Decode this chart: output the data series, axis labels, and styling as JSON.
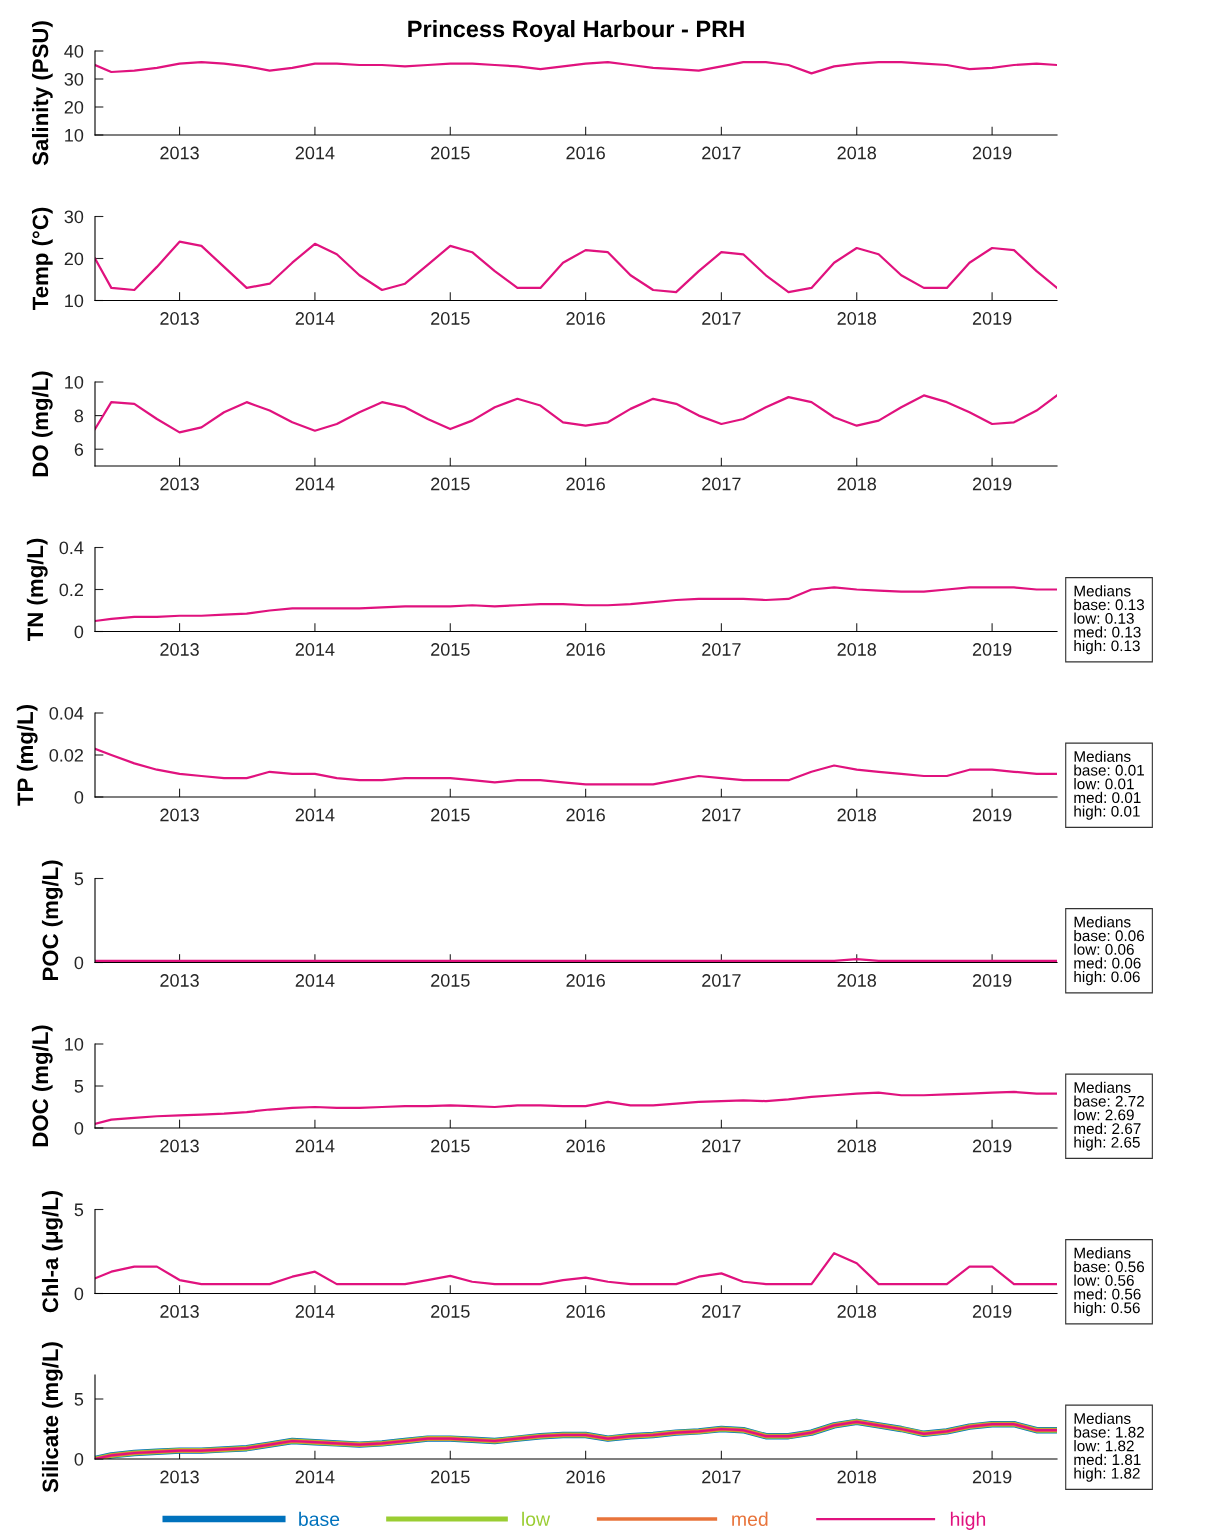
{
  "chart_data": [
    {
      "type": "line",
      "title": "Princess Royal Harbour - PRH",
      "ylabel": "Salinity (PSU)",
      "xlim": [
        "2012-05-18",
        "2019-06-25"
      ],
      "xticks": [
        "2013",
        "2014",
        "2015",
        "2016",
        "2017",
        "2018",
        "2019"
      ],
      "ylim": [
        10,
        40
      ],
      "yticks": [
        10,
        20,
        30,
        40
      ],
      "grid": false,
      "x": [
        "2012-05-18",
        "2012-07",
        "2012-09",
        "2012-11",
        "2013-01",
        "2013-03",
        "2013-05",
        "2013-07",
        "2013-09",
        "2013-11",
        "2014-01",
        "2014-03",
        "2014-05",
        "2014-07",
        "2014-09",
        "2014-11",
        "2015-01",
        "2015-03",
        "2015-05",
        "2015-07",
        "2015-09",
        "2015-11",
        "2016-01",
        "2016-03",
        "2016-05",
        "2016-07",
        "2016-09",
        "2016-11",
        "2017-01",
        "2017-03",
        "2017-05",
        "2017-07",
        "2017-09",
        "2017-11",
        "2018-01",
        "2018-03",
        "2018-05",
        "2018-07",
        "2018-09",
        "2018-11",
        "2019-01",
        "2019-03",
        "2019-05",
        "2019-06-25"
      ],
      "series": [
        {
          "color": "#e0127e",
          "values": [
            35,
            32.5,
            33,
            34,
            35.5,
            36,
            35.5,
            34.5,
            33,
            34,
            35.5,
            35.5,
            35,
            35,
            34.5,
            35,
            35.5,
            35.5,
            35,
            34.5,
            33.5,
            34.5,
            35.5,
            36,
            35,
            34,
            33.5,
            33,
            34.5,
            36,
            36,
            35,
            32,
            34.5,
            35.5,
            36,
            36,
            35.5,
            35,
            33.5,
            34,
            35,
            35.5,
            35
          ]
        }
      ]
    },
    {
      "type": "line",
      "ylabel": "Temp (°C)",
      "xlim": [
        "2012-05-18",
        "2019-06-25"
      ],
      "xticks": [
        "2013",
        "2014",
        "2015",
        "2016",
        "2017",
        "2018",
        "2019"
      ],
      "ylim": [
        10,
        30
      ],
      "yticks": [
        10,
        20,
        30
      ],
      "grid": false,
      "x": [
        "2012-05-18",
        "2012-07",
        "2012-09",
        "2012-11",
        "2013-01",
        "2013-03",
        "2013-05",
        "2013-07",
        "2013-09",
        "2013-11",
        "2014-01",
        "2014-03",
        "2014-05",
        "2014-07",
        "2014-09",
        "2014-11",
        "2015-01",
        "2015-03",
        "2015-05",
        "2015-07",
        "2015-09",
        "2015-11",
        "2016-01",
        "2016-03",
        "2016-05",
        "2016-07",
        "2016-09",
        "2016-11",
        "2017-01",
        "2017-03",
        "2017-05",
        "2017-07",
        "2017-09",
        "2017-11",
        "2018-01",
        "2018-03",
        "2018-05",
        "2018-07",
        "2018-09",
        "2018-11",
        "2019-01",
        "2019-03",
        "2019-05",
        "2019-06-25"
      ],
      "series": [
        {
          "color": "#e0127e",
          "values": [
            20,
            13,
            12.5,
            18,
            24,
            23,
            18,
            13,
            14,
            19,
            23.5,
            21,
            16,
            12.5,
            14,
            18.5,
            23,
            21.5,
            17,
            13,
            13,
            19,
            22,
            21.5,
            16,
            12.5,
            12,
            17,
            21.5,
            21,
            16,
            12,
            13,
            19,
            22.5,
            21,
            16,
            13,
            13,
            19,
            22.5,
            22,
            17,
            13
          ]
        }
      ]
    },
    {
      "type": "line",
      "ylabel": "DO (mg/L)",
      "xlim": [
        "2012-05-18",
        "2019-06-25"
      ],
      "xticks": [
        "2013",
        "2014",
        "2015",
        "2016",
        "2017",
        "2018",
        "2019"
      ],
      "ylim": [
        5,
        10
      ],
      "yticks": [
        6,
        8,
        10
      ],
      "grid": false,
      "x": [
        "2012-05-18",
        "2012-07",
        "2012-09",
        "2012-11",
        "2013-01",
        "2013-03",
        "2013-05",
        "2013-07",
        "2013-09",
        "2013-11",
        "2014-01",
        "2014-03",
        "2014-05",
        "2014-07",
        "2014-09",
        "2014-11",
        "2015-01",
        "2015-03",
        "2015-05",
        "2015-07",
        "2015-09",
        "2015-11",
        "2016-01",
        "2016-03",
        "2016-05",
        "2016-07",
        "2016-09",
        "2016-11",
        "2017-01",
        "2017-03",
        "2017-05",
        "2017-07",
        "2017-09",
        "2017-11",
        "2018-01",
        "2018-03",
        "2018-05",
        "2018-07",
        "2018-09",
        "2018-11",
        "2019-01",
        "2019-03",
        "2019-05",
        "2019-06-25"
      ],
      "series": [
        {
          "color": "#e0127e",
          "values": [
            7.2,
            8.8,
            8.7,
            7.8,
            7,
            7.3,
            8.2,
            8.8,
            8.3,
            7.6,
            7.1,
            7.5,
            8.2,
            8.8,
            8.5,
            7.8,
            7.2,
            7.7,
            8.5,
            9,
            8.6,
            7.6,
            7.4,
            7.6,
            8.4,
            9,
            8.7,
            8,
            7.5,
            7.8,
            8.5,
            9.1,
            8.8,
            7.9,
            7.4,
            7.7,
            8.5,
            9.2,
            8.8,
            8.2,
            7.5,
            7.6,
            8.3,
            9.2
          ]
        }
      ]
    },
    {
      "type": "line",
      "ylabel": "TN (mg/L)",
      "xlim": [
        "2012-05-18",
        "2019-06-25"
      ],
      "xticks": [
        "2013",
        "2014",
        "2015",
        "2016",
        "2017",
        "2018",
        "2019"
      ],
      "ylim": [
        0,
        0.4
      ],
      "yticks": [
        0,
        0.2,
        0.4
      ],
      "grid": false,
      "annotations": [
        "Medians\nbase: 0.13\nlow: 0.13\nmed: 0.13\nhigh: 0.13"
      ],
      "x": [
        "2012-05-18",
        "2012-07",
        "2012-09",
        "2012-11",
        "2013-01",
        "2013-03",
        "2013-05",
        "2013-07",
        "2013-09",
        "2013-11",
        "2014-01",
        "2014-03",
        "2014-05",
        "2014-07",
        "2014-09",
        "2014-11",
        "2015-01",
        "2015-03",
        "2015-05",
        "2015-07",
        "2015-09",
        "2015-11",
        "2016-01",
        "2016-03",
        "2016-05",
        "2016-07",
        "2016-09",
        "2016-11",
        "2017-01",
        "2017-03",
        "2017-05",
        "2017-07",
        "2017-09",
        "2017-11",
        "2018-01",
        "2018-03",
        "2018-05",
        "2018-07",
        "2018-09",
        "2018-11",
        "2019-01",
        "2019-03",
        "2019-05",
        "2019-06-25"
      ],
      "series": [
        {
          "color": "#e0127e",
          "values": [
            0.05,
            0.06,
            0.07,
            0.07,
            0.075,
            0.075,
            0.08,
            0.085,
            0.1,
            0.11,
            0.11,
            0.11,
            0.11,
            0.115,
            0.12,
            0.12,
            0.12,
            0.125,
            0.12,
            0.125,
            0.13,
            0.13,
            0.125,
            0.125,
            0.13,
            0.14,
            0.15,
            0.155,
            0.155,
            0.155,
            0.15,
            0.155,
            0.2,
            0.21,
            0.2,
            0.195,
            0.19,
            0.19,
            0.2,
            0.21,
            0.21,
            0.21,
            0.2,
            0.2
          ]
        }
      ]
    },
    {
      "type": "line",
      "ylabel": "TP (mg/L)",
      "xlim": [
        "2012-05-18",
        "2019-06-25"
      ],
      "xticks": [
        "2013",
        "2014",
        "2015",
        "2016",
        "2017",
        "2018",
        "2019"
      ],
      "ylim": [
        0,
        0.04
      ],
      "yticks": [
        0,
        0.02,
        0.04
      ],
      "grid": false,
      "annotations": [
        "Medians\nbase: 0.01\nlow: 0.01\nmed: 0.01\nhigh: 0.01"
      ],
      "x": [
        "2012-05-18",
        "2012-07",
        "2012-09",
        "2012-11",
        "2013-01",
        "2013-03",
        "2013-05",
        "2013-07",
        "2013-09",
        "2013-11",
        "2014-01",
        "2014-03",
        "2014-05",
        "2014-07",
        "2014-09",
        "2014-11",
        "2015-01",
        "2015-03",
        "2015-05",
        "2015-07",
        "2015-09",
        "2015-11",
        "2016-01",
        "2016-03",
        "2016-05",
        "2016-07",
        "2016-09",
        "2016-11",
        "2017-01",
        "2017-03",
        "2017-05",
        "2017-07",
        "2017-09",
        "2017-11",
        "2018-01",
        "2018-03",
        "2018-05",
        "2018-07",
        "2018-09",
        "2018-11",
        "2019-01",
        "2019-03",
        "2019-05",
        "2019-06-25"
      ],
      "series": [
        {
          "color": "#e0127e",
          "values": [
            0.023,
            0.02,
            0.016,
            0.013,
            0.011,
            0.01,
            0.009,
            0.009,
            0.012,
            0.011,
            0.011,
            0.009,
            0.008,
            0.008,
            0.009,
            0.009,
            0.009,
            0.008,
            0.007,
            0.008,
            0.008,
            0.007,
            0.006,
            0.006,
            0.006,
            0.006,
            0.008,
            0.01,
            0.009,
            0.008,
            0.008,
            0.008,
            0.012,
            0.015,
            0.013,
            0.012,
            0.011,
            0.01,
            0.01,
            0.013,
            0.013,
            0.012,
            0.011,
            0.011
          ]
        }
      ]
    },
    {
      "type": "line",
      "ylabel": "POC (mg/L)",
      "xlim": [
        "2012-05-18",
        "2019-06-25"
      ],
      "xticks": [
        "2013",
        "2014",
        "2015",
        "2016",
        "2017",
        "2018",
        "2019"
      ],
      "ylim": [
        0,
        5
      ],
      "yticks": [
        0,
        5
      ],
      "grid": false,
      "annotations": [
        "Medians\nbase: 0.06\nlow: 0.06\nmed: 0.06\nhigh: 0.06"
      ],
      "x": [
        "2012-05-18",
        "2012-07",
        "2012-09",
        "2012-11",
        "2013-01",
        "2013-03",
        "2013-05",
        "2013-07",
        "2013-09",
        "2013-11",
        "2014-01",
        "2014-03",
        "2014-05",
        "2014-07",
        "2014-09",
        "2014-11",
        "2015-01",
        "2015-03",
        "2015-05",
        "2015-07",
        "2015-09",
        "2015-11",
        "2016-01",
        "2016-03",
        "2016-05",
        "2016-07",
        "2016-09",
        "2016-11",
        "2017-01",
        "2017-03",
        "2017-05",
        "2017-07",
        "2017-09",
        "2017-11",
        "2018-01",
        "2018-03",
        "2018-05",
        "2018-07",
        "2018-09",
        "2018-11",
        "2019-01",
        "2019-03",
        "2019-05",
        "2019-06-25"
      ],
      "series": [
        {
          "color": "#e0127e",
          "values": [
            0.1,
            0.1,
            0.1,
            0.1,
            0.1,
            0.1,
            0.1,
            0.1,
            0.1,
            0.1,
            0.1,
            0.1,
            0.1,
            0.1,
            0.1,
            0.1,
            0.1,
            0.1,
            0.1,
            0.1,
            0.1,
            0.1,
            0.1,
            0.1,
            0.1,
            0.1,
            0.1,
            0.1,
            0.1,
            0.1,
            0.1,
            0.1,
            0.1,
            0.1,
            0.2,
            0.1,
            0.1,
            0.1,
            0.1,
            0.1,
            0.1,
            0.1,
            0.1,
            0.1
          ]
        }
      ]
    },
    {
      "type": "line",
      "ylabel": "DOC (mg/L)",
      "xlim": [
        "2012-05-18",
        "2019-06-25"
      ],
      "xticks": [
        "2013",
        "2014",
        "2015",
        "2016",
        "2017",
        "2018",
        "2019"
      ],
      "ylim": [
        0,
        10
      ],
      "yticks": [
        0,
        5,
        10
      ],
      "grid": false,
      "annotations": [
        "Medians\nbase: 2.72\nlow: 2.69\nmed: 2.67\nhigh: 2.65"
      ],
      "x": [
        "2012-05-18",
        "2012-07",
        "2012-09",
        "2012-11",
        "2013-01",
        "2013-03",
        "2013-05",
        "2013-07",
        "2013-09",
        "2013-11",
        "2014-01",
        "2014-03",
        "2014-05",
        "2014-07",
        "2014-09",
        "2014-11",
        "2015-01",
        "2015-03",
        "2015-05",
        "2015-07",
        "2015-09",
        "2015-11",
        "2016-01",
        "2016-03",
        "2016-05",
        "2016-07",
        "2016-09",
        "2016-11",
        "2017-01",
        "2017-03",
        "2017-05",
        "2017-07",
        "2017-09",
        "2017-11",
        "2018-01",
        "2018-03",
        "2018-05",
        "2018-07",
        "2018-09",
        "2018-11",
        "2019-01",
        "2019-03",
        "2019-05",
        "2019-06-25"
      ],
      "series": [
        {
          "color": "#e0127e",
          "values": [
            0.5,
            1,
            1.2,
            1.4,
            1.5,
            1.6,
            1.7,
            1.9,
            2.2,
            2.4,
            2.5,
            2.4,
            2.4,
            2.5,
            2.6,
            2.6,
            2.7,
            2.6,
            2.5,
            2.7,
            2.7,
            2.6,
            2.6,
            3.1,
            2.7,
            2.7,
            2.9,
            3.1,
            3.2,
            3.3,
            3.2,
            3.4,
            3.7,
            3.9,
            4.1,
            4.2,
            3.9,
            3.9,
            4.0,
            4.1,
            4.2,
            4.3,
            4.1,
            4.1
          ]
        }
      ]
    },
    {
      "type": "line",
      "ylabel": "Chl-a (μg/L)",
      "xlim": [
        "2012-05-18",
        "2019-06-25"
      ],
      "xticks": [
        "2013",
        "2014",
        "2015",
        "2016",
        "2017",
        "2018",
        "2019"
      ],
      "ylim": [
        0,
        5
      ],
      "yticks": [
        0,
        5
      ],
      "grid": false,
      "annotations": [
        "Medians\nbase: 0.56\nlow: 0.56\nmed: 0.56\nhigh: 0.56"
      ],
      "x": [
        "2012-05-18",
        "2012-07",
        "2012-09",
        "2012-11",
        "2013-01",
        "2013-03",
        "2013-05",
        "2013-07",
        "2013-09",
        "2013-11",
        "2014-01",
        "2014-03",
        "2014-05",
        "2014-07",
        "2014-09",
        "2014-11",
        "2015-01",
        "2015-03",
        "2015-05",
        "2015-07",
        "2015-09",
        "2015-11",
        "2016-01",
        "2016-03",
        "2016-05",
        "2016-07",
        "2016-09",
        "2016-11",
        "2017-01",
        "2017-03",
        "2017-05",
        "2017-07",
        "2017-09",
        "2017-11",
        "2018-01",
        "2018-03",
        "2018-05",
        "2018-07",
        "2018-09",
        "2018-11",
        "2019-01",
        "2019-03",
        "2019-05",
        "2019-06-25"
      ],
      "series": [
        {
          "color": "#e0127e",
          "values": [
            0.9,
            1.3,
            1.6,
            1.6,
            0.8,
            0.56,
            0.56,
            0.56,
            0.56,
            1.0,
            1.3,
            0.56,
            0.56,
            0.56,
            0.56,
            0.8,
            1.05,
            0.7,
            0.56,
            0.56,
            0.56,
            0.8,
            0.95,
            0.7,
            0.56,
            0.56,
            0.56,
            1.0,
            1.2,
            0.7,
            0.56,
            0.56,
            0.56,
            2.4,
            1.8,
            0.56,
            0.56,
            0.56,
            0.56,
            1.6,
            1.6,
            0.56,
            0.56,
            0.56
          ]
        }
      ]
    },
    {
      "type": "line",
      "ylabel": "Silicate (mg/L)",
      "xlim": [
        "2012-05-18",
        "2019-06-25"
      ],
      "xticks": [
        "2013",
        "2014",
        "2015",
        "2016",
        "2017",
        "2018",
        "2019"
      ],
      "ylim": [
        0,
        7
      ],
      "yticks": [
        0,
        5
      ],
      "grid": false,
      "legend": "bottom",
      "annotations": [
        "Medians\nbase: 1.82\nlow: 1.82\nmed: 1.81\nhigh: 1.82"
      ],
      "x": [
        "2012-05-18",
        "2012-07",
        "2012-09",
        "2012-11",
        "2013-01",
        "2013-03",
        "2013-05",
        "2013-07",
        "2013-09",
        "2013-11",
        "2014-01",
        "2014-03",
        "2014-05",
        "2014-07",
        "2014-09",
        "2014-11",
        "2015-01",
        "2015-03",
        "2015-05",
        "2015-07",
        "2015-09",
        "2015-11",
        "2016-01",
        "2016-03",
        "2016-05",
        "2016-07",
        "2016-09",
        "2016-11",
        "2017-01",
        "2017-03",
        "2017-05",
        "2017-07",
        "2017-09",
        "2017-11",
        "2018-01",
        "2018-03",
        "2018-05",
        "2018-07",
        "2018-09",
        "2018-11",
        "2019-01",
        "2019-03",
        "2019-05",
        "2019-06-25"
      ],
      "series": [
        {
          "name": "base",
          "color": "#0072bd",
          "values": [
            0,
            0.3,
            0.5,
            0.6,
            0.7,
            0.7,
            0.8,
            0.9,
            1.2,
            1.5,
            1.4,
            1.3,
            1.2,
            1.3,
            1.5,
            1.7,
            1.7,
            1.6,
            1.5,
            1.7,
            1.9,
            2.0,
            2.0,
            1.7,
            1.9,
            2.0,
            2.2,
            2.3,
            2.5,
            2.4,
            1.9,
            1.9,
            2.2,
            2.8,
            3.1,
            2.8,
            2.5,
            2.1,
            2.3,
            2.7,
            2.9,
            2.9,
            2.4,
            2.4
          ]
        },
        {
          "name": "low",
          "color": "#9acd32",
          "values": [
            0,
            0.3,
            0.5,
            0.6,
            0.7,
            0.7,
            0.8,
            0.9,
            1.2,
            1.5,
            1.4,
            1.3,
            1.2,
            1.3,
            1.5,
            1.7,
            1.7,
            1.6,
            1.5,
            1.7,
            1.9,
            2.0,
            2.0,
            1.7,
            1.9,
            2.0,
            2.2,
            2.3,
            2.5,
            2.4,
            1.9,
            1.9,
            2.2,
            2.8,
            3.1,
            2.8,
            2.5,
            2.1,
            2.3,
            2.7,
            2.9,
            2.9,
            2.4,
            2.4
          ]
        },
        {
          "name": "med",
          "color": "#e8743b",
          "values": [
            0,
            0.3,
            0.5,
            0.6,
            0.7,
            0.7,
            0.8,
            0.9,
            1.2,
            1.5,
            1.4,
            1.3,
            1.2,
            1.3,
            1.5,
            1.7,
            1.7,
            1.6,
            1.5,
            1.7,
            1.9,
            2.0,
            2.0,
            1.7,
            1.9,
            2.0,
            2.2,
            2.3,
            2.5,
            2.4,
            1.9,
            1.9,
            2.2,
            2.8,
            3.1,
            2.8,
            2.5,
            2.1,
            2.3,
            2.7,
            2.9,
            2.9,
            2.4,
            2.4
          ]
        },
        {
          "name": "high",
          "color": "#e0127e",
          "values": [
            0,
            0.3,
            0.5,
            0.6,
            0.7,
            0.7,
            0.8,
            0.9,
            1.2,
            1.5,
            1.4,
            1.3,
            1.2,
            1.3,
            1.5,
            1.7,
            1.7,
            1.6,
            1.5,
            1.7,
            1.9,
            2.0,
            2.0,
            1.7,
            1.9,
            2.0,
            2.2,
            2.3,
            2.5,
            2.4,
            1.9,
            1.9,
            2.2,
            2.8,
            3.1,
            2.8,
            2.5,
            2.1,
            2.3,
            2.7,
            2.9,
            2.9,
            2.4,
            2.4
          ]
        }
      ]
    }
  ]
}
